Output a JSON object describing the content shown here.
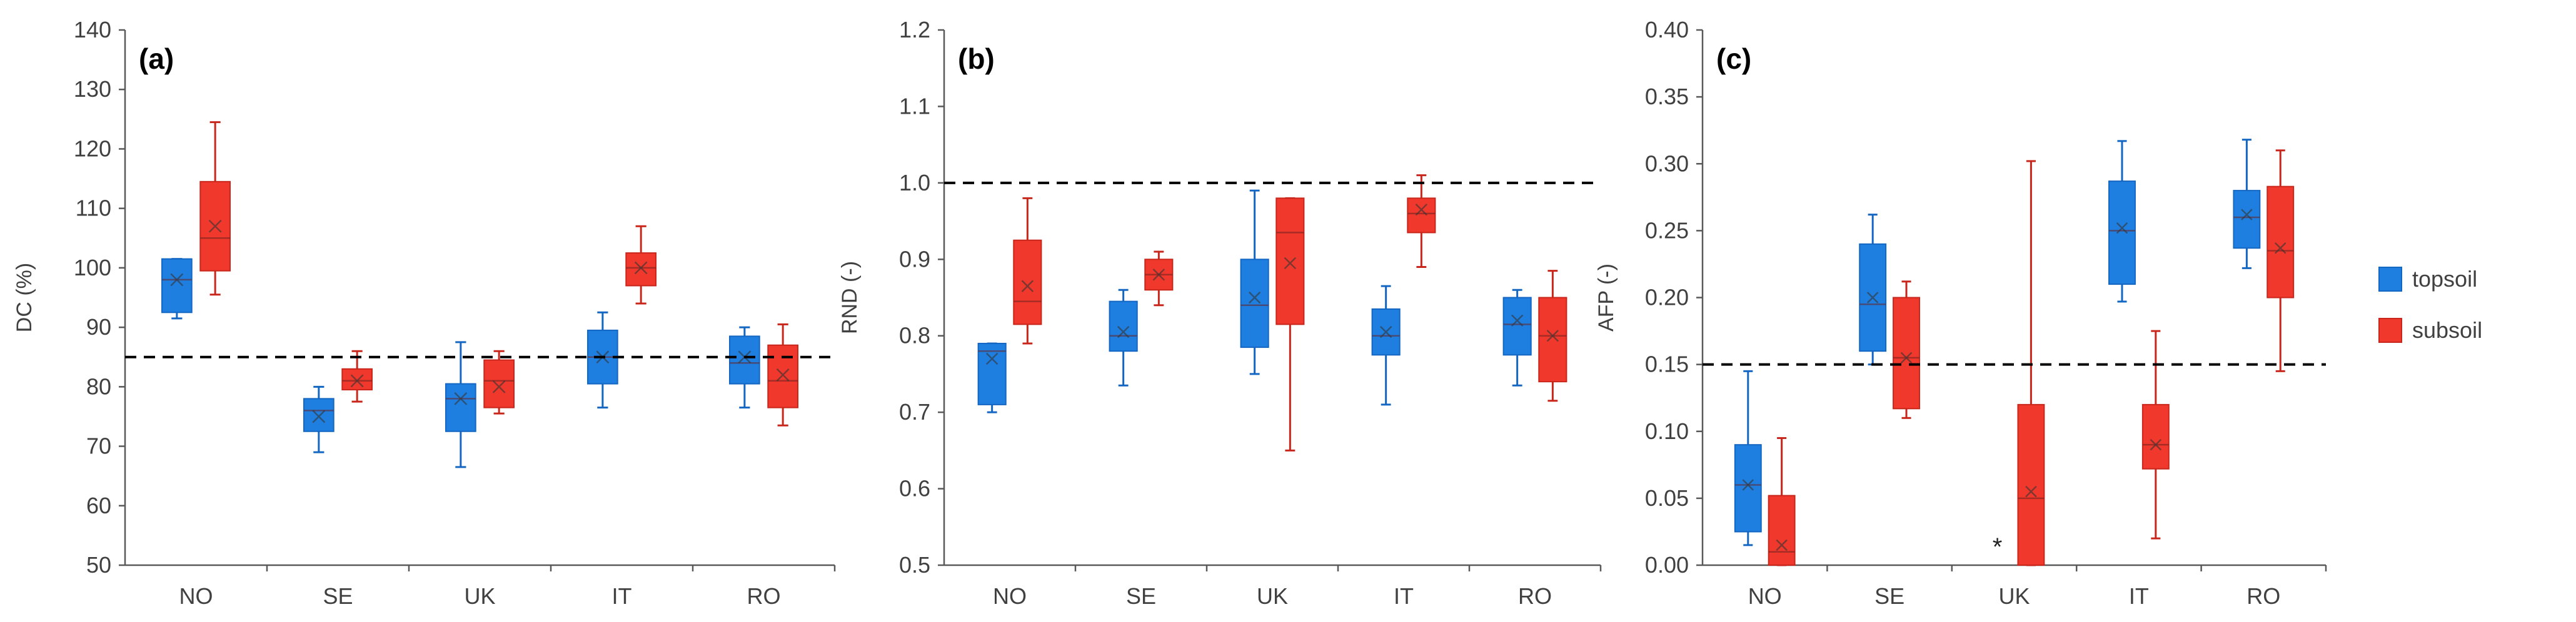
{
  "legend": [
    {
      "name": "topsoil",
      "color": "#1f7fe0"
    },
    {
      "name": "subsoil",
      "color": "#f0392c"
    }
  ],
  "colors": {
    "topsoil": "#1f7fe0",
    "subsoil": "#f0392c",
    "topsoil_edge": "#1366c2",
    "subsoil_edge": "#c9261b"
  },
  "chart_data": [
    {
      "type": "boxplot",
      "panel_label": "(a)",
      "ylabel": "DC (%)",
      "ylim": [
        50,
        140
      ],
      "yticks": [
        50,
        60,
        70,
        80,
        90,
        100,
        110,
        120,
        130,
        140
      ],
      "ytick_labels": [
        "50",
        "60",
        "70",
        "80",
        "90",
        "100",
        "110",
        "120",
        "130",
        "140"
      ],
      "categories": [
        "NO",
        "SE",
        "UK",
        "IT",
        "RO"
      ],
      "reference_line": 85,
      "series": [
        {
          "name": "topsoil",
          "boxes": [
            {
              "min": 91.5,
              "q1": 92.5,
              "median": 98,
              "q3": 101.5,
              "max": 101.5,
              "mean": 98
            },
            {
              "min": 69,
              "q1": 72.5,
              "median": 76,
              "q3": 78,
              "max": 80,
              "mean": 75
            },
            {
              "min": 66.5,
              "q1": 72.5,
              "median": 78,
              "q3": 80.5,
              "max": 87.5,
              "mean": 78
            },
            {
              "min": 76.5,
              "q1": 80.5,
              "median": 85,
              "q3": 89.5,
              "max": 92.5,
              "mean": 85
            },
            {
              "min": 76.5,
              "q1": 80.5,
              "median": 84,
              "q3": 88.5,
              "max": 90,
              "mean": 85
            }
          ]
        },
        {
          "name": "subsoil",
          "boxes": [
            {
              "min": 95.5,
              "q1": 99.5,
              "median": 105,
              "q3": 114.5,
              "max": 124.5,
              "mean": 107
            },
            {
              "min": 77.5,
              "q1": 79.5,
              "median": 81,
              "q3": 83,
              "max": 86,
              "mean": 81
            },
            {
              "min": 75.5,
              "q1": 76.5,
              "median": 81,
              "q3": 84.5,
              "max": 86,
              "mean": 80
            },
            {
              "min": 94,
              "q1": 97,
              "median": 100,
              "q3": 102.5,
              "max": 107,
              "mean": 100
            },
            {
              "min": 73.5,
              "q1": 76.5,
              "median": 81,
              "q3": 87,
              "max": 90.5,
              "mean": 82
            }
          ]
        }
      ]
    },
    {
      "type": "boxplot",
      "panel_label": "(b)",
      "ylabel": "RND (-)",
      "ylim": [
        0.5,
        1.2
      ],
      "yticks": [
        0.5,
        0.6,
        0.7,
        0.8,
        0.9,
        1.0,
        1.1,
        1.2
      ],
      "ytick_labels": [
        "0.5",
        "0.6",
        "0.7",
        "0.8",
        "0.9",
        "1.0",
        "1.1",
        "1.2"
      ],
      "categories": [
        "NO",
        "SE",
        "UK",
        "IT",
        "RO"
      ],
      "reference_line": 1.0,
      "series": [
        {
          "name": "topsoil",
          "boxes": [
            {
              "min": 0.7,
              "q1": 0.71,
              "median": 0.78,
              "q3": 0.79,
              "max": 0.79,
              "mean": 0.77
            },
            {
              "min": 0.735,
              "q1": 0.78,
              "median": 0.8,
              "q3": 0.845,
              "max": 0.86,
              "mean": 0.805
            },
            {
              "min": 0.75,
              "q1": 0.785,
              "median": 0.84,
              "q3": 0.9,
              "max": 0.99,
              "mean": 0.85
            },
            {
              "min": 0.71,
              "q1": 0.775,
              "median": 0.8,
              "q3": 0.835,
              "max": 0.865,
              "mean": 0.805
            },
            {
              "min": 0.735,
              "q1": 0.775,
              "median": 0.815,
              "q3": 0.85,
              "max": 0.86,
              "mean": 0.82
            }
          ]
        },
        {
          "name": "subsoil",
          "boxes": [
            {
              "min": 0.79,
              "q1": 0.815,
              "median": 0.845,
              "q3": 0.925,
              "max": 0.98,
              "mean": 0.865
            },
            {
              "min": 0.84,
              "q1": 0.86,
              "median": 0.88,
              "q3": 0.9,
              "max": 0.91,
              "mean": 0.88
            },
            {
              "min": 0.65,
              "q1": 0.815,
              "median": 0.935,
              "q3": 0.98,
              "max": 0.98,
              "mean": 0.895
            },
            {
              "min": 0.89,
              "q1": 0.935,
              "median": 0.96,
              "q3": 0.98,
              "max": 1.01,
              "mean": 0.965
            },
            {
              "min": 0.715,
              "q1": 0.74,
              "median": 0.8,
              "q3": 0.85,
              "max": 0.885,
              "mean": 0.8
            }
          ]
        }
      ]
    },
    {
      "type": "boxplot",
      "panel_label": "(c)",
      "ylabel": "AFP (-)",
      "ylim": [
        0.0,
        0.4
      ],
      "yticks": [
        0.0,
        0.05,
        0.1,
        0.15,
        0.2,
        0.25,
        0.3,
        0.35,
        0.4
      ],
      "ytick_labels": [
        "0.00",
        "0.05",
        "0.10",
        "0.15",
        "0.20",
        "0.25",
        "0.30",
        "0.35",
        "0.40"
      ],
      "categories": [
        "NO",
        "SE",
        "UK",
        "IT",
        "RO"
      ],
      "reference_line": 0.15,
      "annotation": {
        "text": "*",
        "category": "UK",
        "value": 0.014
      },
      "series": [
        {
          "name": "topsoil",
          "boxes": [
            {
              "min": 0.015,
              "q1": 0.025,
              "median": 0.06,
              "q3": 0.09,
              "max": 0.145,
              "mean": 0.06
            },
            {
              "min": 0.15,
              "q1": 0.16,
              "median": 0.195,
              "q3": 0.24,
              "max": 0.262,
              "mean": 0.2
            },
            null,
            {
              "min": 0.197,
              "q1": 0.21,
              "median": 0.25,
              "q3": 0.287,
              "max": 0.317,
              "mean": 0.252
            },
            {
              "min": 0.222,
              "q1": 0.237,
              "median": 0.26,
              "q3": 0.28,
              "max": 0.318,
              "mean": 0.262
            }
          ]
        },
        {
          "name": "subsoil",
          "boxes": [
            {
              "min": 0.0,
              "q1": 0.0,
              "median": 0.01,
              "q3": 0.052,
              "max": 0.095,
              "mean": 0.015
            },
            {
              "min": 0.11,
              "q1": 0.117,
              "median": 0.155,
              "q3": 0.2,
              "max": 0.212,
              "mean": 0.155
            },
            {
              "min": 0.0,
              "q1": 0.0,
              "median": 0.05,
              "q3": 0.12,
              "max": 0.302,
              "mean": 0.055
            },
            {
              "min": 0.02,
              "q1": 0.072,
              "median": 0.09,
              "q3": 0.12,
              "max": 0.175,
              "mean": 0.09
            },
            {
              "min": 0.145,
              "q1": 0.2,
              "median": 0.235,
              "q3": 0.283,
              "max": 0.31,
              "mean": 0.237
            }
          ]
        }
      ]
    }
  ]
}
